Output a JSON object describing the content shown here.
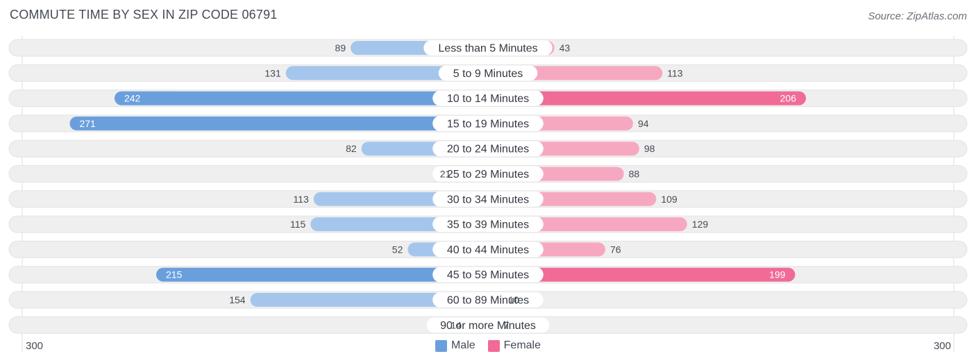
{
  "title": "COMMUTE TIME BY SEX IN ZIP CODE 06791",
  "source": "Source: ZipAtlas.com",
  "axis": {
    "left_label": "300",
    "right_label": "300"
  },
  "legend": {
    "male_label": "Male",
    "female_label": "Female"
  },
  "colors": {
    "male_dark": "#6a9fdc",
    "male_light": "#a5c6ec",
    "female_dark": "#f06b96",
    "female_light": "#f7a8c1",
    "row_background": "#efefef"
  },
  "chart_data": {
    "type": "bar",
    "orientation": "horizontal-diverging",
    "categories": [
      "Less than 5 Minutes",
      "5 to 9 Minutes",
      "10 to 14 Minutes",
      "15 to 19 Minutes",
      "20 to 24 Minutes",
      "25 to 29 Minutes",
      "30 to 34 Minutes",
      "35 to 39 Minutes",
      "40 to 44 Minutes",
      "45 to 59 Minutes",
      "60 to 89 Minutes",
      "90 or more Minutes"
    ],
    "series": [
      {
        "name": "Male",
        "values": [
          89,
          131,
          242,
          271,
          82,
          21,
          113,
          115,
          52,
          215,
          154,
          14
        ]
      },
      {
        "name": "Female",
        "values": [
          43,
          113,
          206,
          94,
          98,
          88,
          109,
          129,
          76,
          199,
          10,
          7
        ]
      }
    ],
    "xlim": [
      -300,
      300
    ],
    "legend_position": "bottom-center"
  }
}
